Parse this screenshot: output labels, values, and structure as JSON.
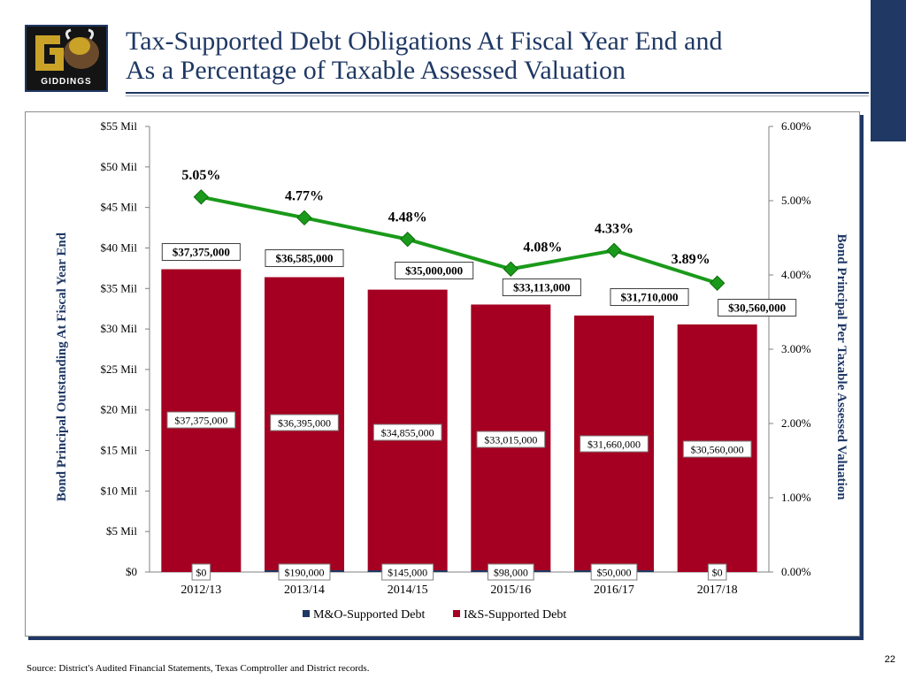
{
  "title": {
    "line1": "Tax-Supported Debt Obligations At Fiscal Year End and",
    "line2": "As a Percentage of Taxable Assessed Valuation"
  },
  "logo": {
    "text": "GIDDINGS"
  },
  "source_note": "Source: District's Audited Financial Statements, Texas Comptroller and District records.",
  "page_number": "22",
  "colors": {
    "brand_navy": "#1f3864",
    "is_bar": "#a50021",
    "mo_bar": "#1f3864",
    "pct_line": "#1a9a1a"
  },
  "chart_data": {
    "type": "bar",
    "title": "Tax-Supported Debt Obligations At Fiscal Year End and As a Percentage of Taxable Assessed Valuation",
    "categories": [
      "2012/13",
      "2013/14",
      "2014/15",
      "2015/16",
      "2016/17",
      "2017/18"
    ],
    "ylabel": "Bond Principal Outstanding At Fiscal Year End",
    "y2label": "Bond Principal Per Taxable Assessed Valuation",
    "ylim": [
      0,
      55000000
    ],
    "y2lim": [
      0,
      6.0
    ],
    "yticks": [
      {
        "value": 0,
        "label": "$0"
      },
      {
        "value": 5000000,
        "label": "$5 Mil"
      },
      {
        "value": 10000000,
        "label": "$10 Mil"
      },
      {
        "value": 15000000,
        "label": "$15 Mil"
      },
      {
        "value": 20000000,
        "label": "$20 Mil"
      },
      {
        "value": 25000000,
        "label": "$25 Mil"
      },
      {
        "value": 30000000,
        "label": "$30 Mil"
      },
      {
        "value": 35000000,
        "label": "$35 Mil"
      },
      {
        "value": 40000000,
        "label": "$40 Mil"
      },
      {
        "value": 45000000,
        "label": "$45 Mil"
      },
      {
        "value": 50000000,
        "label": "$50 Mil"
      },
      {
        "value": 55000000,
        "label": "$55 Mil"
      }
    ],
    "y2ticks": [
      {
        "value": 0,
        "label": "0.00%"
      },
      {
        "value": 1,
        "label": "1.00%"
      },
      {
        "value": 2,
        "label": "2.00%"
      },
      {
        "value": 3,
        "label": "3.00%"
      },
      {
        "value": 4,
        "label": "4.00%"
      },
      {
        "value": 5,
        "label": "5.00%"
      },
      {
        "value": 6,
        "label": "6.00%"
      }
    ],
    "series": [
      {
        "name": "M&O-Supported Debt",
        "kind": "bar",
        "axis": "left",
        "values": [
          0,
          190000,
          145000,
          98000,
          50000,
          0
        ],
        "labels": [
          "$0",
          "$190,000",
          "$145,000",
          "$98,000",
          "$50,000",
          "$0"
        ]
      },
      {
        "name": "I&S-Supported Debt",
        "kind": "bar",
        "axis": "left",
        "values": [
          37375000,
          36395000,
          34855000,
          33015000,
          31660000,
          30560000
        ],
        "labels": [
          "$37,375,000",
          "$36,395,000",
          "$34,855,000",
          "$33,015,000",
          "$31,660,000",
          "$30,560,000"
        ]
      },
      {
        "name": "Total Tax-Supported Debt",
        "kind": "total-label",
        "values": [
          37375000,
          36585000,
          35000000,
          33113000,
          31710000,
          30560000
        ],
        "labels": [
          "$37,375,000",
          "$36,585,000",
          "$35,000,000",
          "$33,113,000",
          "$31,710,000",
          "$30,560,000"
        ]
      },
      {
        "name": "Debt as % of Taxable Assessed Valuation",
        "kind": "line",
        "axis": "right",
        "values": [
          5.05,
          4.77,
          4.48,
          4.08,
          4.33,
          3.89
        ],
        "labels": [
          "5.05%",
          "4.77%",
          "4.48%",
          "4.08%",
          "4.33%",
          "3.89%"
        ]
      }
    ],
    "legend": {
      "position": "bottom",
      "items": [
        "M&O-Supported Debt",
        "I&S-Supported Debt"
      ]
    }
  }
}
